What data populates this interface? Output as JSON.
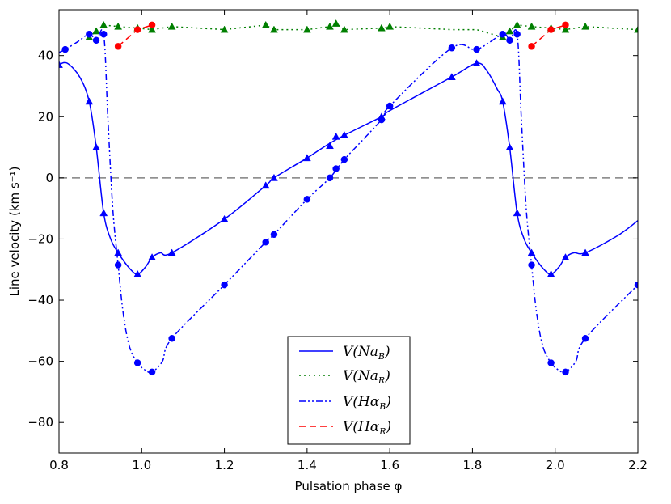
{
  "chart_data": {
    "type": "line",
    "title": "",
    "xlabel": "Pulsation phase φ",
    "ylabel": "Line velocity (km s⁻¹)",
    "xlim": [
      0.8,
      2.2
    ],
    "ylim": [
      -90,
      55
    ],
    "xticks": [
      0.8,
      1.0,
      1.2,
      1.4,
      1.6,
      1.8,
      2.0,
      2.2
    ],
    "yticks": [
      -80,
      -60,
      -40,
      -20,
      0,
      20,
      40
    ],
    "xtick_labels": [
      "0.8",
      "1.0",
      "1.2",
      "1.4",
      "1.6",
      "1.8",
      "2.0",
      "2.2"
    ],
    "ytick_labels": [
      "−80",
      "−60",
      "−40",
      "−20",
      "0",
      "20",
      "40"
    ],
    "zero_line": 0,
    "grid": false,
    "legend_position": "bottom-center",
    "series": [
      {
        "name": "NaB",
        "legend_label": "V(Na",
        "legend_sub": "B",
        "color": "#0000ff",
        "style": "solid",
        "marker": "triangle",
        "markers": [
          [
            0.8,
            37
          ],
          [
            0.873,
            25
          ],
          [
            0.89,
            10
          ],
          [
            0.908,
            -11.5
          ],
          [
            0.943,
            -24.5
          ],
          [
            0.99,
            -31.5
          ],
          [
            1.025,
            -26
          ],
          [
            1.073,
            -24.5
          ],
          [
            1.2,
            -13.5
          ],
          [
            1.3,
            -2.5
          ],
          [
            1.32,
            0
          ],
          [
            1.4,
            6.5
          ],
          [
            1.455,
            10.5
          ],
          [
            1.47,
            13.5
          ],
          [
            1.49,
            14
          ],
          [
            1.58,
            20
          ],
          [
            1.6,
            23.5
          ],
          [
            1.75,
            33
          ],
          [
            1.81,
            37.5
          ],
          [
            1.873,
            25
          ],
          [
            1.89,
            10
          ],
          [
            1.908,
            -11.5
          ],
          [
            1.943,
            -24.5
          ],
          [
            1.99,
            -31.5
          ],
          [
            2.025,
            -26
          ],
          [
            2.073,
            -24.5
          ]
        ],
        "curve": [
          [
            0.8,
            37
          ],
          [
            0.82,
            37.5
          ],
          [
            0.85,
            33
          ],
          [
            0.873,
            25
          ],
          [
            0.89,
            10
          ],
          [
            0.908,
            -11.5
          ],
          [
            0.925,
            -20
          ],
          [
            0.943,
            -24.5
          ],
          [
            0.97,
            -29.5
          ],
          [
            0.99,
            -31.5
          ],
          [
            1.01,
            -29
          ],
          [
            1.025,
            -26
          ],
          [
            1.045,
            -24.5
          ],
          [
            1.073,
            -24.5
          ],
          [
            1.2,
            -13.5
          ],
          [
            1.3,
            -2.5
          ],
          [
            1.32,
            0
          ],
          [
            1.4,
            6.5
          ],
          [
            1.47,
            12.5
          ],
          [
            1.58,
            20
          ],
          [
            1.6,
            22
          ],
          [
            1.75,
            33
          ],
          [
            1.81,
            37.5
          ],
          [
            1.835,
            35
          ],
          [
            1.86,
            29
          ],
          [
            1.873,
            25
          ],
          [
            1.89,
            10
          ],
          [
            1.908,
            -11.5
          ],
          [
            1.925,
            -20
          ],
          [
            1.943,
            -24.5
          ],
          [
            1.97,
            -29.5
          ],
          [
            1.99,
            -31.5
          ],
          [
            2.01,
            -29
          ],
          [
            2.025,
            -26
          ],
          [
            2.045,
            -24.5
          ],
          [
            2.073,
            -24.5
          ],
          [
            2.15,
            -19
          ],
          [
            2.2,
            -14
          ]
        ]
      },
      {
        "name": "NaR",
        "legend_label": "V(Na",
        "legend_sub": "R",
        "color": "#007f00",
        "style": "dotted",
        "marker": "triangle",
        "markers": [
          [
            0.873,
            46
          ],
          [
            0.89,
            48
          ],
          [
            0.908,
            50
          ],
          [
            0.943,
            49.5
          ],
          [
            0.99,
            49
          ],
          [
            1.025,
            48.5
          ],
          [
            1.073,
            49.5
          ],
          [
            1.2,
            48.5
          ],
          [
            1.3,
            50
          ],
          [
            1.32,
            48.5
          ],
          [
            1.4,
            48.5
          ],
          [
            1.455,
            49.5
          ],
          [
            1.47,
            50.5
          ],
          [
            1.49,
            48.5
          ],
          [
            1.58,
            49
          ],
          [
            1.6,
            49.5
          ],
          [
            1.873,
            46
          ],
          [
            1.89,
            48
          ],
          [
            1.908,
            50
          ],
          [
            1.943,
            49.5
          ],
          [
            1.99,
            49
          ],
          [
            2.025,
            48.5
          ],
          [
            2.073,
            49.5
          ],
          [
            2.2,
            48.5
          ]
        ],
        "curve": [
          [
            0.873,
            46
          ],
          [
            0.89,
            48
          ],
          [
            0.908,
            50
          ],
          [
            0.943,
            49.5
          ],
          [
            0.99,
            49
          ],
          [
            1.025,
            48.5
          ],
          [
            1.073,
            49.5
          ],
          [
            1.2,
            48.5
          ],
          [
            1.3,
            50
          ],
          [
            1.32,
            48.5
          ],
          [
            1.4,
            48.5
          ],
          [
            1.455,
            49.5
          ],
          [
            1.47,
            50.5
          ],
          [
            1.49,
            48.5
          ],
          [
            1.58,
            49
          ],
          [
            1.6,
            49.5
          ],
          [
            1.75,
            48.5
          ],
          [
            1.81,
            48.5
          ],
          [
            1.873,
            46
          ],
          [
            1.89,
            48
          ],
          [
            1.908,
            50
          ],
          [
            1.943,
            49.5
          ],
          [
            1.99,
            49
          ],
          [
            2.025,
            48.5
          ],
          [
            2.073,
            49.5
          ],
          [
            2.2,
            48.5
          ]
        ]
      },
      {
        "name": "HaB",
        "legend_label": "V(Hα",
        "legend_sub": "B",
        "color": "#0000ff",
        "style": "dashdotdot",
        "marker": "circle",
        "markers": [
          [
            0.815,
            42
          ],
          [
            0.873,
            47
          ],
          [
            0.89,
            45
          ],
          [
            0.908,
            47
          ],
          [
            0.943,
            -28.5
          ],
          [
            0.99,
            -60.5
          ],
          [
            1.025,
            -63.5
          ],
          [
            1.073,
            -52.5
          ],
          [
            1.2,
            -35
          ],
          [
            1.3,
            -21
          ],
          [
            1.32,
            -18.5
          ],
          [
            1.4,
            -7
          ],
          [
            1.455,
            0
          ],
          [
            1.47,
            3
          ],
          [
            1.49,
            6
          ],
          [
            1.58,
            19
          ],
          [
            1.6,
            23.5
          ],
          [
            1.75,
            42.5
          ],
          [
            1.81,
            42
          ],
          [
            1.873,
            47
          ],
          [
            1.89,
            45
          ],
          [
            1.908,
            47
          ],
          [
            1.943,
            -28.5
          ],
          [
            1.99,
            -60.5
          ],
          [
            2.025,
            -63.5
          ],
          [
            2.073,
            -52.5
          ],
          [
            2.2,
            -35
          ]
        ],
        "curve": [
          [
            0.8,
            41
          ],
          [
            0.815,
            42
          ],
          [
            0.845,
            44.5
          ],
          [
            0.873,
            47
          ],
          [
            0.89,
            45
          ],
          [
            0.908,
            47
          ],
          [
            0.918,
            20
          ],
          [
            0.93,
            -10
          ],
          [
            0.943,
            -28.5
          ],
          [
            0.955,
            -44
          ],
          [
            0.97,
            -55
          ],
          [
            0.99,
            -60.5
          ],
          [
            1.01,
            -63
          ],
          [
            1.025,
            -63.5
          ],
          [
            1.05,
            -60
          ],
          [
            1.073,
            -52.5
          ],
          [
            1.2,
            -35
          ],
          [
            1.3,
            -21
          ],
          [
            1.32,
            -18.5
          ],
          [
            1.4,
            -7
          ],
          [
            1.455,
            0
          ],
          [
            1.49,
            6
          ],
          [
            1.58,
            19
          ],
          [
            1.6,
            23.5
          ],
          [
            1.75,
            42.5
          ],
          [
            1.81,
            42
          ],
          [
            1.873,
            47
          ],
          [
            1.89,
            45
          ],
          [
            1.908,
            47
          ],
          [
            1.918,
            20
          ],
          [
            1.93,
            -10
          ],
          [
            1.943,
            -28.5
          ],
          [
            1.955,
            -44
          ],
          [
            1.97,
            -55
          ],
          [
            1.99,
            -60.5
          ],
          [
            2.01,
            -63
          ],
          [
            2.025,
            -63.5
          ],
          [
            2.05,
            -60
          ],
          [
            2.073,
            -52.5
          ],
          [
            2.2,
            -35
          ]
        ]
      },
      {
        "name": "HaR",
        "legend_label": "V(Hα",
        "legend_sub": "R",
        "color": "#ff0000",
        "style": "dashed",
        "marker": "circle",
        "markers": [
          [
            0.943,
            43
          ],
          [
            0.99,
            48.5
          ],
          [
            1.025,
            50
          ],
          [
            1.943,
            43
          ],
          [
            1.99,
            48.5
          ],
          [
            2.025,
            50
          ]
        ],
        "segments": [
          [
            [
              0.943,
              43
            ],
            [
              0.99,
              48.5
            ],
            [
              1.025,
              50
            ]
          ],
          [
            [
              1.943,
              43
            ],
            [
              1.99,
              48.5
            ],
            [
              2.025,
              50
            ]
          ]
        ]
      }
    ]
  }
}
